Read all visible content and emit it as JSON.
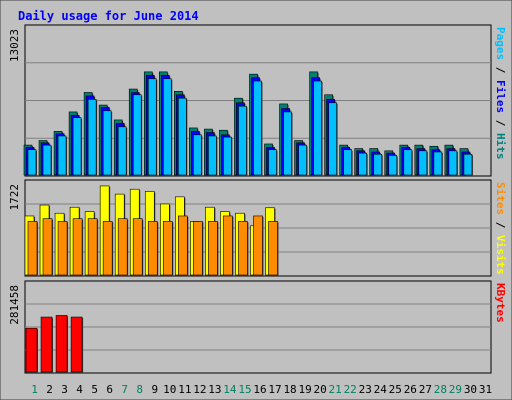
{
  "chart_data": {
    "type": "bar",
    "title": "Daily usage for June 2014",
    "days": [
      "1",
      "2",
      "3",
      "4",
      "5",
      "6",
      "7",
      "8",
      "9",
      "10",
      "11",
      "12",
      "13",
      "14",
      "15",
      "16",
      "17",
      "18",
      "19",
      "20",
      "21",
      "22",
      "23",
      "24",
      "25",
      "26",
      "27",
      "28",
      "29",
      "30",
      "31"
    ],
    "weekend_days": [
      "1",
      "7",
      "8",
      "14",
      "15",
      "21",
      "22",
      "28",
      "29"
    ],
    "panels": [
      {
        "id": "top",
        "ymax": 13023,
        "ymax_label": "13023",
        "right_labels": [
          {
            "text": "Pages",
            "color": "#00bfff"
          },
          {
            "text": " / ",
            "color": "#000000"
          },
          {
            "text": "Files",
            "color": "#0000ff"
          },
          {
            "text": " / ",
            "color": "#000000"
          },
          {
            "text": "Hits",
            "color": "#008080"
          }
        ],
        "series": [
          {
            "name": "Hits",
            "color": "#00806f",
            "values": [
              2700,
              3100,
              3900,
              5600,
              7300,
              6200,
              4900,
              7600,
              9100,
              9100,
              7400,
              4200,
              4100,
              4000,
              6800,
              8900,
              2800,
              6300,
              3100,
              9100,
              7100,
              2700,
              2400,
              2400,
              2200,
              2700,
              2700,
              2600,
              2700,
              2400,
              0
            ]
          },
          {
            "name": "Files",
            "color": "#0000ff",
            "values": [
              2500,
              2900,
              3700,
              5300,
              7000,
              6000,
              4600,
              7300,
              8800,
              8800,
              7100,
              3900,
              3800,
              3600,
              6400,
              8600,
              2500,
              5900,
              2900,
              8600,
              6700,
              2500,
              2200,
              2100,
              2000,
              2500,
              2400,
              2300,
              2400,
              2100,
              0
            ]
          },
          {
            "name": "Pages",
            "color": "#00bfff",
            "values": [
              2300,
              2700,
              3500,
              5100,
              6700,
              5700,
              4300,
              7100,
              8500,
              8500,
              6800,
              3600,
              3500,
              3400,
              6100,
              8300,
              2300,
              5600,
              2700,
              8300,
              6400,
              2300,
              2000,
              1900,
              1800,
              2300,
              2200,
              2100,
              2200,
              1900,
              0
            ]
          }
        ]
      },
      {
        "id": "middle",
        "ymax": 1722,
        "ymax_label": "1722",
        "right_labels": [
          {
            "text": "Sites",
            "color": "#ff8c00"
          },
          {
            "text": " / ",
            "color": "#000000"
          },
          {
            "text": "Visits",
            "color": "#ffff00"
          }
        ],
        "series": [
          {
            "name": "Visits",
            "color": "#ffff00",
            "values": [
              1100,
              1300,
              1150,
              1260,
              1180,
              1650,
              1500,
              1590,
              1550,
              1320,
              1450,
              1000,
              1260,
              1180,
              1150,
              920,
              1250,
              0,
              0,
              0,
              0,
              0,
              0,
              0,
              0,
              0,
              0,
              0,
              0,
              0,
              0
            ]
          },
          {
            "name": "Sites",
            "color": "#ff8c00",
            "values": [
              1000,
              1050,
              1000,
              1050,
              1050,
              1000,
              1050,
              1050,
              1000,
              1000,
              1100,
              1000,
              1000,
              1100,
              1000,
              1100,
              1000,
              0,
              0,
              0,
              0,
              0,
              0,
              0,
              0,
              0,
              0,
              0,
              0,
              0,
              0
            ]
          }
        ]
      },
      {
        "id": "bottom",
        "ymax": 281458,
        "ymax_label": "281458",
        "right_labels": [
          {
            "text": "KBytes",
            "color": "#ff0000"
          }
        ],
        "series": [
          {
            "name": "KBytes",
            "color": "#ff0000",
            "values": [
              140000,
              175000,
              180000,
              175000,
              0,
              0,
              0,
              0,
              0,
              0,
              0,
              0,
              0,
              0,
              0,
              0,
              0,
              0,
              0,
              0,
              0,
              0,
              0,
              0,
              0,
              0,
              0,
              0,
              0,
              0,
              0
            ]
          }
        ]
      }
    ]
  }
}
